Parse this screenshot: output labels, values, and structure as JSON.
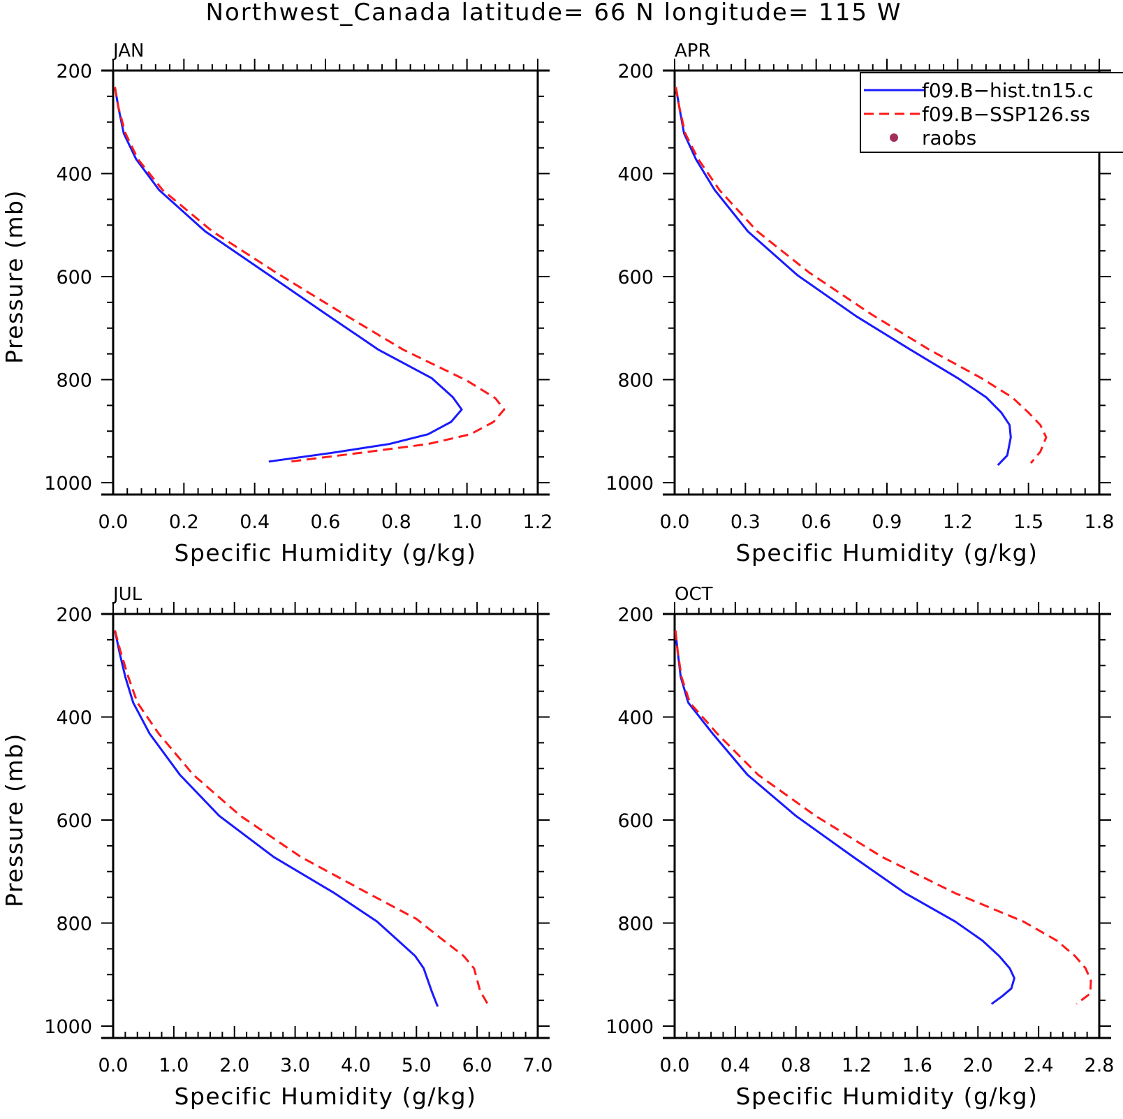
{
  "figure": {
    "title": "Northwest_Canada  latitude= 66 N longitude= 115 W"
  },
  "legend": {
    "entries": [
      {
        "label": "f09.B−hist.tn15.c",
        "style": "solid",
        "color": "#1a1aff"
      },
      {
        "label": "f09.B−SSP126.ss",
        "style": "dashed",
        "color": "#ff1a1a"
      },
      {
        "label": "raobs",
        "style": "marker",
        "color": "#a0305a"
      }
    ]
  },
  "colors": {
    "hist": "#1a1aff",
    "ssp": "#ff1a1a",
    "raobs": "#a0305a"
  },
  "chart_data": [
    {
      "type": "line",
      "panel": "JAN",
      "xlabel": "Specific Humidity (g/kg)",
      "ylabel": "Pressure (mb)",
      "xlim": [
        0,
        1.2
      ],
      "ylim": [
        200,
        1000
      ],
      "y_inverted": true,
      "xticks": [
        "0.0",
        "0.2",
        "0.4",
        "0.6",
        "0.8",
        "1.0",
        "1.2"
      ],
      "yticks": [
        "200",
        "400",
        "600",
        "800",
        "1000"
      ],
      "series": [
        {
          "name": "f09.B−hist.tn15.c",
          "points": [
            [
              0.005,
              232
            ],
            [
              0.015,
              272
            ],
            [
              0.03,
              322
            ],
            [
              0.065,
              372
            ],
            [
              0.13,
              432
            ],
            [
              0.26,
              512
            ],
            [
              0.43,
              592
            ],
            [
              0.6,
              672
            ],
            [
              0.75,
              742
            ],
            [
              0.9,
              797
            ],
            [
              0.96,
              834
            ],
            [
              0.985,
              858
            ],
            [
              0.955,
              882
            ],
            [
              0.89,
              906
            ],
            [
              0.78,
              925
            ],
            [
              0.62,
              942
            ],
            [
              0.44,
              959
            ]
          ]
        },
        {
          "name": "f09.B−SSP126.ss",
          "points": [
            [
              0.005,
              232
            ],
            [
              0.015,
              272
            ],
            [
              0.035,
              322
            ],
            [
              0.07,
              372
            ],
            [
              0.14,
              432
            ],
            [
              0.28,
              512
            ],
            [
              0.46,
              592
            ],
            [
              0.65,
              672
            ],
            [
              0.82,
              742
            ],
            [
              1.0,
              802
            ],
            [
              1.08,
              836
            ],
            [
              1.105,
              858
            ],
            [
              1.075,
              882
            ],
            [
              1.01,
              906
            ],
            [
              0.89,
              925
            ],
            [
              0.7,
              942
            ],
            [
              0.49,
              960
            ]
          ]
        }
      ]
    },
    {
      "type": "line",
      "panel": "APR",
      "xlabel": "Specific Humidity (g/kg)",
      "ylabel": "",
      "xlim": [
        0,
        1.8
      ],
      "ylim": [
        200,
        1000
      ],
      "y_inverted": true,
      "xticks": [
        "0.0",
        "0.3",
        "0.6",
        "0.9",
        "1.2",
        "1.5",
        "1.8"
      ],
      "yticks": [
        "200",
        "400",
        "600",
        "800",
        "1000"
      ],
      "series": [
        {
          "name": "f09.B−hist.tn15.c",
          "points": [
            [
              0.005,
              232
            ],
            [
              0.02,
              272
            ],
            [
              0.04,
              322
            ],
            [
              0.09,
              372
            ],
            [
              0.17,
              432
            ],
            [
              0.31,
              512
            ],
            [
              0.52,
              597
            ],
            [
              0.77,
              677
            ],
            [
              1.0,
              742
            ],
            [
              1.2,
              797
            ],
            [
              1.32,
              834
            ],
            [
              1.385,
              864
            ],
            [
              1.42,
              888
            ],
            [
              1.425,
              912
            ],
            [
              1.41,
              947
            ],
            [
              1.37,
              966
            ]
          ]
        },
        {
          "name": "f09.B−SSP126.ss",
          "points": [
            [
              0.005,
              232
            ],
            [
              0.02,
              272
            ],
            [
              0.045,
              322
            ],
            [
              0.1,
              372
            ],
            [
              0.19,
              432
            ],
            [
              0.35,
              512
            ],
            [
              0.57,
              592
            ],
            [
              0.83,
              672
            ],
            [
              1.08,
              742
            ],
            [
              1.3,
              797
            ],
            [
              1.43,
              834
            ],
            [
              1.5,
              864
            ],
            [
              1.55,
              888
            ],
            [
              1.575,
              912
            ],
            [
              1.55,
              940
            ],
            [
              1.51,
              962
            ]
          ]
        }
      ]
    },
    {
      "type": "line",
      "panel": "JUL",
      "xlabel": "Specific Humidity (g/kg)",
      "ylabel": "Pressure (mb)",
      "xlim": [
        0,
        7
      ],
      "ylim": [
        200,
        1000
      ],
      "y_inverted": true,
      "xticks": [
        "0.0",
        "1.0",
        "2.0",
        "3.0",
        "4.0",
        "5.0",
        "6.0",
        "7.0"
      ],
      "yticks": [
        "200",
        "400",
        "600",
        "800",
        "1000"
      ],
      "series": [
        {
          "name": "f09.B−hist.tn15.c",
          "points": [
            [
              0.03,
              232
            ],
            [
              0.1,
              272
            ],
            [
              0.2,
              322
            ],
            [
              0.33,
              372
            ],
            [
              0.6,
              432
            ],
            [
              1.1,
              512
            ],
            [
              1.75,
              592
            ],
            [
              2.65,
              672
            ],
            [
              3.65,
              742
            ],
            [
              4.35,
              797
            ],
            [
              4.7,
              834
            ],
            [
              4.98,
              864
            ],
            [
              5.12,
              888
            ],
            [
              5.25,
              932
            ],
            [
              5.35,
              962
            ]
          ]
        },
        {
          "name": "f09.B−SSP126.ss",
          "points": [
            [
              0.03,
              232
            ],
            [
              0.12,
              272
            ],
            [
              0.25,
              322
            ],
            [
              0.4,
              372
            ],
            [
              0.75,
              432
            ],
            [
              1.32,
              512
            ],
            [
              2.1,
              592
            ],
            [
              3.1,
              672
            ],
            [
              4.2,
              742
            ],
            [
              5.0,
              792
            ],
            [
              5.45,
              834
            ],
            [
              5.78,
              864
            ],
            [
              5.95,
              888
            ],
            [
              6.05,
              932
            ],
            [
              6.2,
              962
            ]
          ]
        }
      ]
    },
    {
      "type": "line",
      "panel": "OCT",
      "xlabel": "Specific Humidity (g/kg)",
      "ylabel": "",
      "xlim": [
        0,
        2.8
      ],
      "ylim": [
        200,
        1000
      ],
      "y_inverted": true,
      "xticks": [
        "0.0",
        "0.4",
        "0.8",
        "1.2",
        "1.6",
        "2.0",
        "2.4",
        "2.8"
      ],
      "yticks": [
        "200",
        "400",
        "600",
        "800",
        "1000"
      ],
      "series": [
        {
          "name": "f09.B−hist.tn15.c",
          "points": [
            [
              0.005,
              232
            ],
            [
              0.02,
              272
            ],
            [
              0.04,
              322
            ],
            [
              0.09,
              372
            ],
            [
              0.25,
              432
            ],
            [
              0.48,
              512
            ],
            [
              0.8,
              592
            ],
            [
              1.18,
              672
            ],
            [
              1.52,
              742
            ],
            [
              1.85,
              797
            ],
            [
              2.03,
              834
            ],
            [
              2.14,
              864
            ],
            [
              2.21,
              888
            ],
            [
              2.24,
              907
            ],
            [
              2.22,
              927
            ],
            [
              2.16,
              942
            ],
            [
              2.09,
              957
            ]
          ]
        },
        {
          "name": "f09.B−SSP126.ss",
          "points": [
            [
              0.005,
              232
            ],
            [
              0.02,
              272
            ],
            [
              0.045,
              322
            ],
            [
              0.1,
              372
            ],
            [
              0.28,
              432
            ],
            [
              0.55,
              512
            ],
            [
              0.93,
              592
            ],
            [
              1.37,
              672
            ],
            [
              1.85,
              742
            ],
            [
              2.3,
              797
            ],
            [
              2.52,
              834
            ],
            [
              2.64,
              864
            ],
            [
              2.71,
              888
            ],
            [
              2.745,
              912
            ],
            [
              2.74,
              937
            ],
            [
              2.65,
              957
            ]
          ]
        }
      ]
    }
  ]
}
